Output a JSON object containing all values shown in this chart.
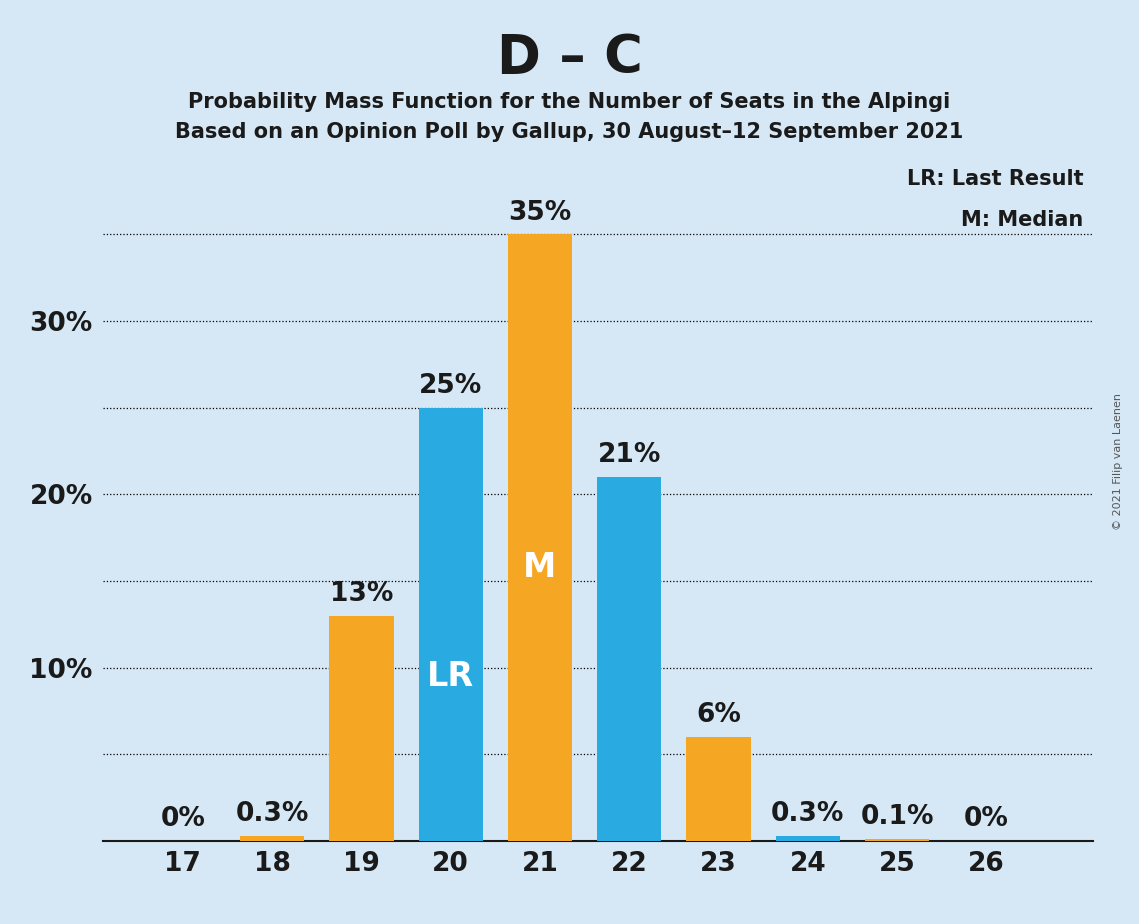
{
  "title": "D – C",
  "subtitle1": "Probability Mass Function for the Number of Seats in the Alpingi",
  "subtitle2": "Based on an Opinion Poll by Gallup, 30 August–12 September 2021",
  "copyright": "© 2021 Filip van Laenen",
  "seats": [
    17,
    18,
    19,
    20,
    21,
    22,
    23,
    24,
    25,
    26
  ],
  "pmf_values": [
    0.0,
    0.3,
    13.0,
    25.0,
    35.0,
    21.0,
    6.0,
    0.3,
    0.1,
    0.0
  ],
  "bar_colors": [
    "#F5A623",
    "#F5A623",
    "#F5A623",
    "#29ABE2",
    "#F5A623",
    "#29ABE2",
    "#F5A623",
    "#29ABE2",
    "#F5A623",
    "#F5A623"
  ],
  "lr_seat": 20,
  "median_seat": 21,
  "background_color": "#D6E8F5",
  "grid_ticks": [
    5,
    10,
    15,
    20,
    25,
    30,
    35
  ],
  "ytick_positions": [
    10,
    20,
    30
  ],
  "ytick_labels": [
    "10%",
    "20%",
    "30%"
  ],
  "bar_labels": [
    "0%",
    "0.3%",
    "13%",
    "25%",
    "35%",
    "21%",
    "6%",
    "0.3%",
    "0.1%",
    "0%"
  ],
  "title_fontsize": 38,
  "subtitle_fontsize": 15,
  "bar_label_fontsize": 19,
  "axis_tick_fontsize": 19,
  "legend_fontsize": 15,
  "lr_label": "LR",
  "m_label": "M",
  "legend_lr": "LR: Last Result",
  "legend_m": "M: Median"
}
